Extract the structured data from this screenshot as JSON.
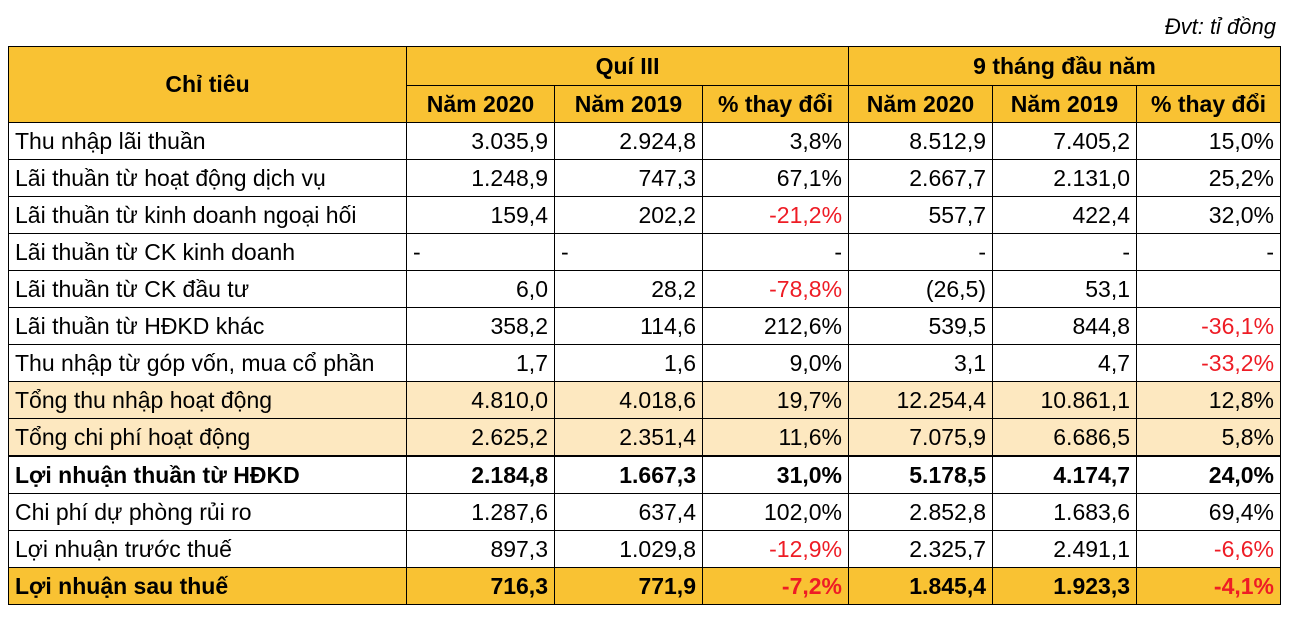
{
  "unit_note": "Đvt: tỉ đồng",
  "header": {
    "indicator": "Chỉ tiêu",
    "group1": "Quí III",
    "group2": "9 tháng đầu năm",
    "col_2020": "Năm 2020",
    "col_2019": "Năm 2019",
    "col_change": "% thay đổi"
  },
  "rows": [
    {
      "label": "Thu nhập lãi thuần",
      "q_2020": "3.035,9",
      "q_2019": "2.924,8",
      "q_chg": "3,8%",
      "y_2020": "8.512,9",
      "y_2019": "7.405,2",
      "y_chg": "15,0%"
    },
    {
      "label": "Lãi thuần từ hoạt động dịch vụ",
      "q_2020": "1.248,9",
      "q_2019": "747,3",
      "q_chg": "67,1%",
      "y_2020": "2.667,7",
      "y_2019": "2.131,0",
      "y_chg": "25,2%"
    },
    {
      "label": "Lãi thuần từ kinh doanh ngoại hối",
      "q_2020": "159,4",
      "q_2019": "202,2",
      "q_chg": "-21,2%",
      "y_2020": "557,7",
      "y_2019": "422,4",
      "y_chg": "32,0%"
    },
    {
      "label": "Lãi thuần từ CK kinh doanh",
      "q_2020": "-",
      "q_2019": "-",
      "q_chg": "-",
      "y_2020": "-",
      "y_2019": "-",
      "y_chg": "-"
    },
    {
      "label": "Lãi thuần từ CK đầu tư",
      "q_2020": "6,0",
      "q_2019": "28,2",
      "q_chg": "-78,8%",
      "y_2020": "(26,5)",
      "y_2019": "53,1",
      "y_chg": ""
    },
    {
      "label": "Lãi thuần từ HĐKD khác",
      "q_2020": "358,2",
      "q_2019": "114,6",
      "q_chg": "212,6%",
      "y_2020": "539,5",
      "y_2019": "844,8",
      "y_chg": "-36,1%"
    },
    {
      "label": "Thu nhập từ góp vốn, mua cổ phần",
      "q_2020": "1,7",
      "q_2019": "1,6",
      "q_chg": "9,0%",
      "y_2020": "3,1",
      "y_2019": "4,7",
      "y_chg": "-33,2%"
    },
    {
      "label": "Tổng thu nhập hoạt động",
      "q_2020": "4.810,0",
      "q_2019": "4.018,6",
      "q_chg": "19,7%",
      "y_2020": "12.254,4",
      "y_2019": "10.861,1",
      "y_chg": "12,8%"
    },
    {
      "label": "Tổng chi phí hoạt động",
      "q_2020": "2.625,2",
      "q_2019": "2.351,4",
      "q_chg": "11,6%",
      "y_2020": "7.075,9",
      "y_2019": "6.686,5",
      "y_chg": "5,8%"
    },
    {
      "label": "Lợi nhuận thuần từ HĐKD",
      "q_2020": "2.184,8",
      "q_2019": "1.667,3",
      "q_chg": "31,0%",
      "y_2020": "5.178,5",
      "y_2019": "4.174,7",
      "y_chg": "24,0%"
    },
    {
      "label": "Chi phí dự phòng rủi ro",
      "q_2020": "1.287,6",
      "q_2019": "637,4",
      "q_chg": "102,0%",
      "y_2020": "2.852,8",
      "y_2019": "1.683,6",
      "y_chg": "69,4%"
    },
    {
      "label": "Lợi nhuận trước thuế",
      "q_2020": "897,3",
      "q_2019": "1.029,8",
      "q_chg": "-12,9%",
      "y_2020": "2.325,7",
      "y_2019": "2.491,1",
      "y_chg": "-6,6%"
    },
    {
      "label": "Lợi nhuận sau thuế",
      "q_2020": "716,3",
      "q_2019": "771,9",
      "q_chg": "-7,2%",
      "y_2020": "1.845,4",
      "y_2019": "1.923,3",
      "y_chg": "-4,1%"
    }
  ],
  "colors": {
    "header_bg": "#f9c233",
    "highlight_row_bg": "#fde8c0",
    "negative_text": "#ee1c25"
  }
}
